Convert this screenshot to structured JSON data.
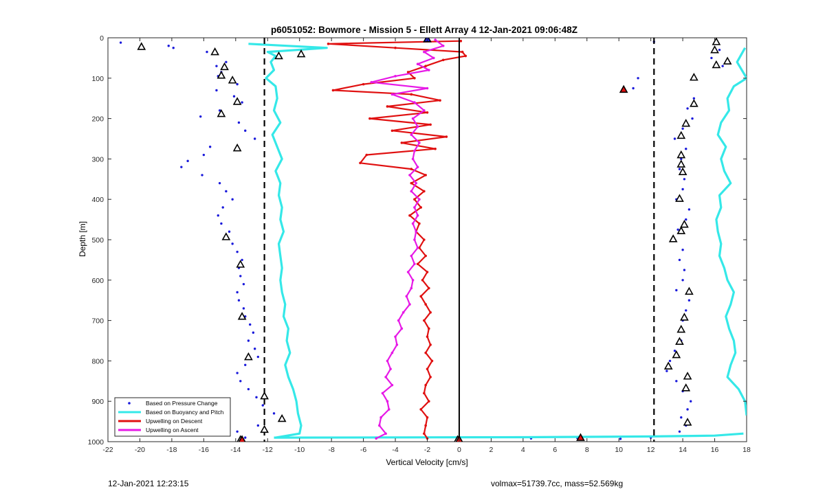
{
  "chart_data": {
    "type": "scatter",
    "title": "p6051052: Bowmore - Mission 5 - Ellett Array 4 12-Jan-2021 09:06:48Z",
    "xlabel": "Vertical Velocity [cm/s]",
    "ylabel": "Depth [m]",
    "xlim": [
      -22,
      18
    ],
    "ylim": [
      1000,
      0
    ],
    "y_reversed": true,
    "xticks": [
      -22,
      -20,
      -18,
      -16,
      -14,
      -12,
      -10,
      -8,
      -6,
      -4,
      -2,
      0,
      2,
      4,
      6,
      8,
      10,
      12,
      14,
      16,
      18
    ],
    "yticks": [
      0,
      100,
      200,
      300,
      400,
      500,
      600,
      700,
      800,
      900,
      1000
    ],
    "grid": false,
    "legend_position": "bottom-left",
    "reference_lines": {
      "dashed_x": [
        -12.2,
        12.2
      ],
      "solid_x": [
        0
      ]
    },
    "series": [
      {
        "name": "Based on Pressure Change",
        "style": "dots",
        "color": "#1a1adb",
        "groups": [
          {
            "depth": [
              12,
              20,
              25,
              35,
              60,
              70,
              85,
              95,
              105,
              115,
              130,
              145,
              160,
              180,
              195,
              210,
              230,
              250,
              270,
              290,
              305,
              320,
              340,
              360,
              380,
              400,
              420,
              440,
              460,
              480,
              495,
              510,
              530,
              550,
              570,
              590,
              610,
              630,
              650,
              670,
              690,
              710,
              730,
              750,
              770,
              790,
              810,
              830,
              850,
              870,
              890,
              910,
              930,
              945,
              960,
              975,
              990
            ],
            "velocity": [
              -21.2,
              -18.2,
              -17.9,
              -15.8,
              -14.6,
              -15.2,
              -14.9,
              -15.1,
              -14.2,
              -13.9,
              -15.2,
              -14.1,
              -13.6,
              -15.0,
              -16.2,
              -13.8,
              -13.4,
              -12.8,
              -15.6,
              -16.0,
              -17.0,
              -17.4,
              -16.1,
              -15.0,
              -14.6,
              -14.2,
              -14.8,
              -15.1,
              -14.9,
              -14.4,
              -14.6,
              -14.2,
              -13.9,
              -13.6,
              -13.8,
              -13.7,
              -13.5,
              -13.9,
              -13.8,
              -13.5,
              -13.4,
              -13.1,
              -12.9,
              -13.2,
              -12.8,
              -12.6,
              -13.4,
              -13.9,
              -13.7,
              -13.2,
              -12.7,
              -12.3,
              -11.6,
              -11.1,
              -12.6,
              -13.9,
              -13.4
            ]
          },
          {
            "depth": [
              10,
              30,
              50,
              70,
              100,
              125,
              150,
              175,
              200,
              225,
              250,
              275,
              300,
              325,
              350,
              375,
              400,
              425,
              450,
              475,
              500,
              525,
              550,
              575,
              600,
              625,
              650,
              675,
              700,
              725,
              750,
              775,
              800,
              825,
              850,
              875,
              900,
              920,
              940,
              960,
              975
            ],
            "velocity": [
              12.2,
              16.3,
              15.8,
              16.5,
              11.2,
              10.9,
              14.7,
              14.3,
              14.6,
              14.0,
              13.5,
              14.2,
              13.9,
              13.8,
              14.1,
              14.0,
              13.6,
              14.4,
              14.2,
              13.7,
              13.4,
              14.0,
              13.8,
              14.1,
              14.0,
              13.6,
              14.4,
              14.2,
              14.0,
              13.8,
              13.9,
              13.5,
              13.2,
              13.0,
              13.6,
              14.0,
              14.5,
              14.3,
              13.9,
              14.2,
              13.8
            ]
          },
          {
            "depth": [
              992,
              991,
              993,
              990
            ],
            "velocity": [
              4.5,
              7.4,
              10.1,
              12.0
            ]
          }
        ]
      },
      {
        "name": "Based on Buoyancy and Pitch",
        "style": "thick-line",
        "color": "#35e8e8",
        "groups": [
          {
            "depth": [
              15,
              25,
              35,
              45,
              60,
              80,
              100,
              120,
              150,
              180,
              210,
              240,
              270,
              300,
              330,
              360,
              390,
              420,
              450,
              480,
              510,
              540,
              570,
              600,
              630,
              660,
              690,
              720,
              750,
              780,
              810,
              840,
              870,
              900,
              930,
              960,
              980,
              990
            ],
            "velocity": [
              -13.2,
              -8.3,
              -12.0,
              -11.5,
              -11.8,
              -11.6,
              -12.1,
              -11.5,
              -11.4,
              -11.6,
              -11.2,
              -11.7,
              -11.4,
              -11.1,
              -11.5,
              -11.2,
              -11.3,
              -11.1,
              -11.2,
              -11.0,
              -11.3,
              -11.2,
              -11.1,
              -11.2,
              -11.1,
              -10.9,
              -11.0,
              -10.7,
              -10.8,
              -10.6,
              -10.9,
              -10.7,
              -10.4,
              -10.2,
              -10.1,
              -9.9,
              -10.0,
              -11.5
            ]
          },
          {
            "depth": [
              990,
              989,
              987,
              985,
              980
            ],
            "velocity": [
              -11.6,
              4.0,
              12.0,
              16.0,
              17.8
            ]
          },
          {
            "depth": [
              25,
              60,
              100,
              120,
              150,
              180,
              210,
              240,
              270,
              300,
              330,
              360,
              390,
              420,
              450,
              480,
              510,
              540,
              570,
              600,
              630,
              660,
              690,
              720,
              750,
              780,
              810,
              840,
              870,
              900,
              935
            ],
            "velocity": [
              17.9,
              17.4,
              18.0,
              17.2,
              16.8,
              16.9,
              16.4,
              16.2,
              16.7,
              16.4,
              16.6,
              17.0,
              16.3,
              16.4,
              16.1,
              16.2,
              16.4,
              16.3,
              16.6,
              16.8,
              17.2,
              17.0,
              16.7,
              16.9,
              17.2,
              17.3,
              17.0,
              16.8,
              17.5,
              17.9,
              18.0
            ]
          }
        ]
      },
      {
        "name": "Upwelling on Descent",
        "style": "line",
        "color": "#e01010",
        "groups": [
          {
            "depth": [
              8,
              15,
              25,
              35,
              45,
              55,
              70,
              85,
              100,
              115,
              130,
              140,
              155,
              170,
              185,
              200,
              215,
              230,
              245,
              260,
              275,
              290,
              310,
              325,
              340,
              360,
              380,
              400,
              420,
              440,
              460,
              480,
              500,
              520,
              540,
              560,
              580,
              600,
              620,
              640,
              660,
              680,
              700,
              720,
              740,
              760,
              780,
              800,
              820,
              840,
              860,
              880,
              900,
              920,
              940,
              960,
              980,
              992
            ],
            "velocity": [
              0.1,
              -8.2,
              -4.0,
              0.2,
              0.4,
              -1.0,
              -2.1,
              -3.2,
              -2.8,
              -6.0,
              -7.9,
              -3.0,
              -1.2,
              -4.5,
              -2.0,
              -5.6,
              -1.8,
              -4.2,
              -0.8,
              -3.6,
              -1.5,
              -5.8,
              -6.2,
              -3.0,
              -2.1,
              -3.0,
              -2.2,
              -2.8,
              -2.4,
              -3.1,
              -2.5,
              -2.7,
              -2.2,
              -2.5,
              -2.1,
              -2.6,
              -2.0,
              -2.3,
              -1.9,
              -2.4,
              -2.1,
              -1.8,
              -2.2,
              -1.9,
              -2.0,
              -1.8,
              -2.1,
              -1.7,
              -2.0,
              -1.8,
              -2.1,
              -2.2,
              -1.9,
              -2.4,
              -2.0,
              -2.1,
              -2.2,
              -2.0
            ]
          }
        ]
      },
      {
        "name": "Upwelling on Ascent",
        "style": "line",
        "color": "#e619e6",
        "groups": [
          {
            "depth": [
              5,
              20,
              35,
              50,
              65,
              80,
              95,
              110,
              125,
              140,
              160,
              180,
              200,
              220,
              240,
              260,
              280,
              300,
              320,
              340,
              360,
              380,
              400,
              420,
              440,
              460,
              480,
              500,
              520,
              540,
              560,
              580,
              600,
              620,
              640,
              660,
              680,
              700,
              720,
              740,
              760,
              780,
              800,
              820,
              840,
              860,
              880,
              900,
              920,
              940,
              960,
              980,
              992
            ],
            "velocity": [
              -1.5,
              -1.0,
              -2.2,
              -1.6,
              -2.6,
              -1.9,
              -4.0,
              -5.5,
              -2.0,
              -4.2,
              -2.8,
              -2.2,
              -2.9,
              -2.6,
              -3.0,
              -2.5,
              -2.8,
              -2.9,
              -2.6,
              -3.1,
              -2.7,
              -3.0,
              -2.5,
              -2.8,
              -2.6,
              -2.9,
              -2.7,
              -2.8,
              -2.6,
              -3.0,
              -2.8,
              -3.2,
              -2.9,
              -3.0,
              -3.3,
              -3.1,
              -3.5,
              -3.8,
              -3.6,
              -4.0,
              -3.9,
              -4.2,
              -4.5,
              -4.3,
              -4.6,
              -4.2,
              -4.8,
              -4.5,
              -4.4,
              -4.9,
              -5.0,
              -4.6,
              -5.2
            ]
          }
        ]
      }
    ],
    "markers": {
      "black_outline_triangles": [
        [
          -19.9,
          22
        ],
        [
          -15.3,
          35
        ],
        [
          -11.3,
          45
        ],
        [
          -9.9,
          40
        ],
        [
          -14.7,
          72
        ],
        [
          -14.9,
          93
        ],
        [
          -14.2,
          105
        ],
        [
          -13.9,
          158
        ],
        [
          -14.9,
          188
        ],
        [
          -13.9,
          273
        ],
        [
          -14.6,
          493
        ],
        [
          -13.7,
          561
        ],
        [
          -13.6,
          690
        ],
        [
          -13.2,
          790
        ],
        [
          -12.2,
          887
        ],
        [
          -11.1,
          943
        ],
        [
          -12.2,
          970
        ],
        [
          -13.7,
          995
        ],
        [
          16.1,
          10
        ],
        [
          16.0,
          30
        ],
        [
          16.8,
          58
        ],
        [
          16.1,
          67
        ],
        [
          14.7,
          98
        ],
        [
          14.7,
          163
        ],
        [
          14.2,
          212
        ],
        [
          13.9,
          242
        ],
        [
          13.9,
          290
        ],
        [
          13.9,
          313
        ],
        [
          14.0,
          332
        ],
        [
          13.8,
          398
        ],
        [
          14.1,
          462
        ],
        [
          13.9,
          478
        ],
        [
          13.4,
          498
        ],
        [
          14.4,
          628
        ],
        [
          14.1,
          692
        ],
        [
          13.9,
          722
        ],
        [
          13.8,
          752
        ],
        [
          13.6,
          785
        ],
        [
          13.1,
          813
        ],
        [
          14.3,
          838
        ],
        [
          14.2,
          867
        ],
        [
          14.3,
          952
        ],
        [
          -0.1,
          995
        ]
      ],
      "filled_triangles": [
        {
          "x": -2.0,
          "y": 3,
          "color": "#1a1adb"
        },
        {
          "x": 10.3,
          "y": 128,
          "color": "#e01010"
        },
        {
          "x": 7.6,
          "y": 990,
          "color": "#e01010"
        },
        {
          "x": -13.6,
          "y": 995,
          "color": "#e01010"
        },
        {
          "x": 0.0,
          "y": 995,
          "color": "#e01010"
        }
      ]
    }
  },
  "footer": {
    "timestamp": "12-Jan-2021 12:23:15",
    "stats": "volmax=51739.7cc, mass=52.569kg"
  }
}
